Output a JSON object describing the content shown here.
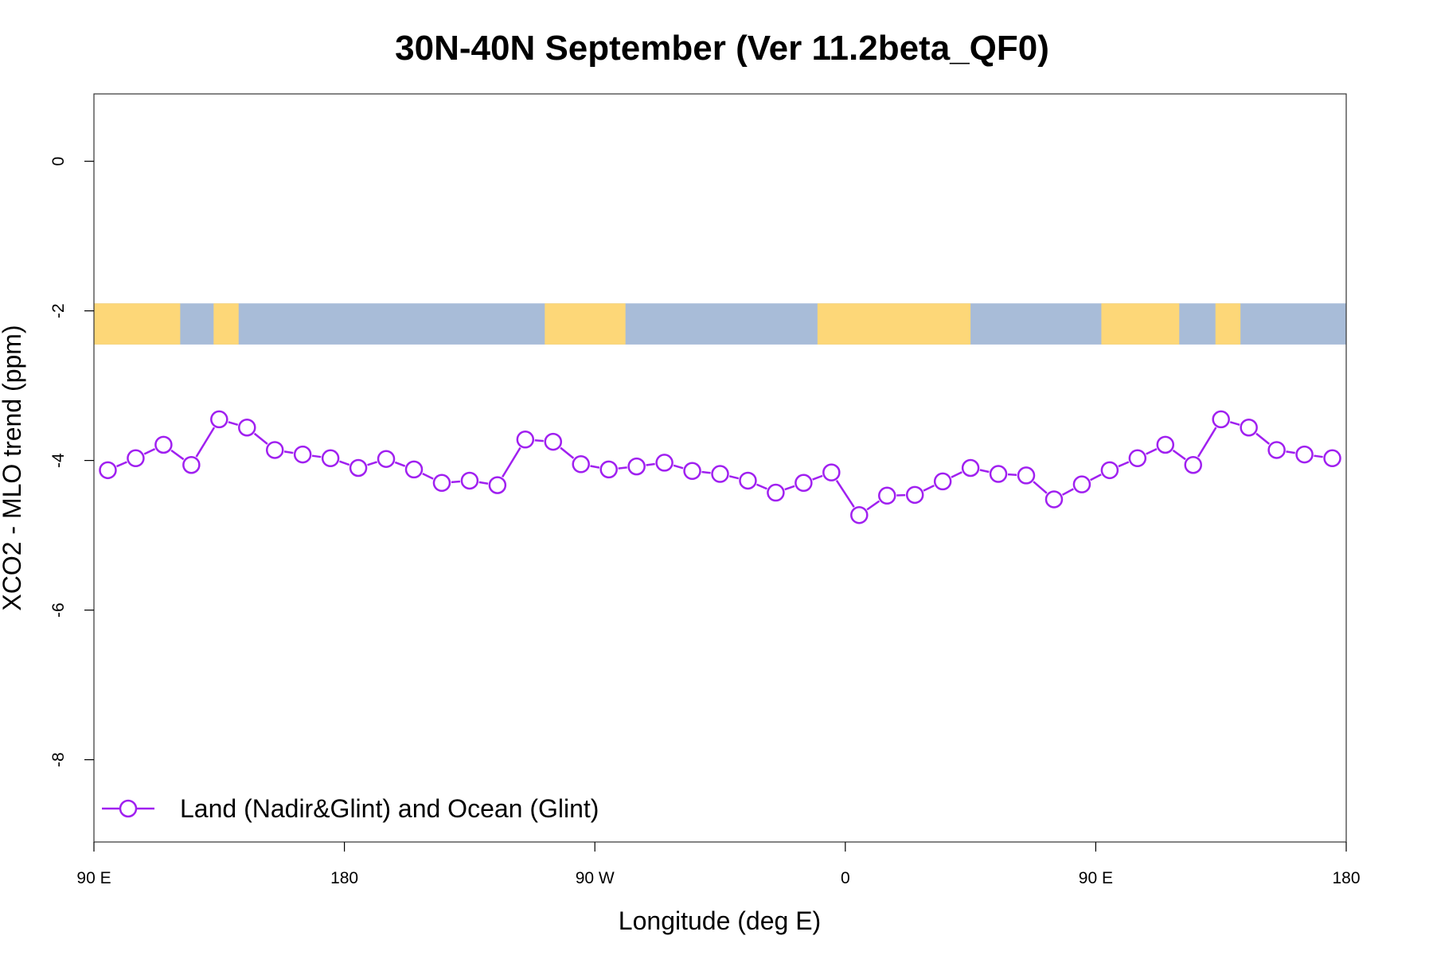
{
  "chart_data": {
    "type": "line",
    "title": "30N-40N September (Ver 11.2beta_QF0)",
    "xlabel": "Longitude (deg E)",
    "ylabel": "XCO2 - MLO trend (ppm)",
    "xlim": [
      90,
      540
    ],
    "ylim": [
      -9.1,
      0.9
    ],
    "x_ticks": [
      {
        "value": 90,
        "label": "90 E"
      },
      {
        "value": 180,
        "label": "180"
      },
      {
        "value": 270,
        "label": "90 W"
      },
      {
        "value": 360,
        "label": "0"
      },
      {
        "value": 450,
        "label": "90 E"
      },
      {
        "value": 540,
        "label": "180"
      }
    ],
    "y_ticks": [
      {
        "value": 0,
        "label": "0"
      },
      {
        "value": -2,
        "label": "-2"
      },
      {
        "value": -4,
        "label": "-4"
      },
      {
        "value": -6,
        "label": "-6"
      },
      {
        "value": -8,
        "label": "-8"
      }
    ],
    "grid": false,
    "legend_position": "bottom-left",
    "map_strip": {
      "y_top": -1.9,
      "y_bottom": -2.45,
      "ocean_color": "#a8bcd8",
      "land_color": "#fdd778"
    },
    "series": [
      {
        "name": "Land (Nadir&Glint) and Ocean (Glint)",
        "color": "#a020f0",
        "marker": "open-circle",
        "x": [
          95,
          105,
          115,
          125,
          135,
          145,
          155,
          165,
          175,
          185,
          195,
          205,
          215,
          225,
          235,
          245,
          255,
          265,
          275,
          285,
          295,
          305,
          315,
          325,
          335,
          345,
          355,
          365,
          375,
          385,
          395,
          405,
          415,
          425,
          435,
          445,
          455,
          465,
          475,
          485,
          495,
          505,
          515,
          525,
          535
        ],
        "values": [
          -4.13,
          -3.97,
          -3.79,
          -4.06,
          -3.45,
          -3.56,
          -3.86,
          -3.92,
          -3.97,
          -4.1,
          -3.98,
          -4.12,
          -4.3,
          -4.27,
          -4.33,
          -3.72,
          -3.75,
          -4.05,
          -4.12,
          -4.08,
          -4.03,
          -4.14,
          -4.18,
          -4.27,
          -4.43,
          -4.3,
          -4.16,
          -4.73,
          -4.47,
          -4.46,
          -4.28,
          -4.1,
          -4.18,
          -4.2,
          -4.52,
          -4.32,
          -4.13,
          -3.97,
          -3.79,
          -4.06,
          -3.45,
          -3.56,
          -3.86,
          -3.92,
          -3.97
        ]
      }
    ]
  }
}
